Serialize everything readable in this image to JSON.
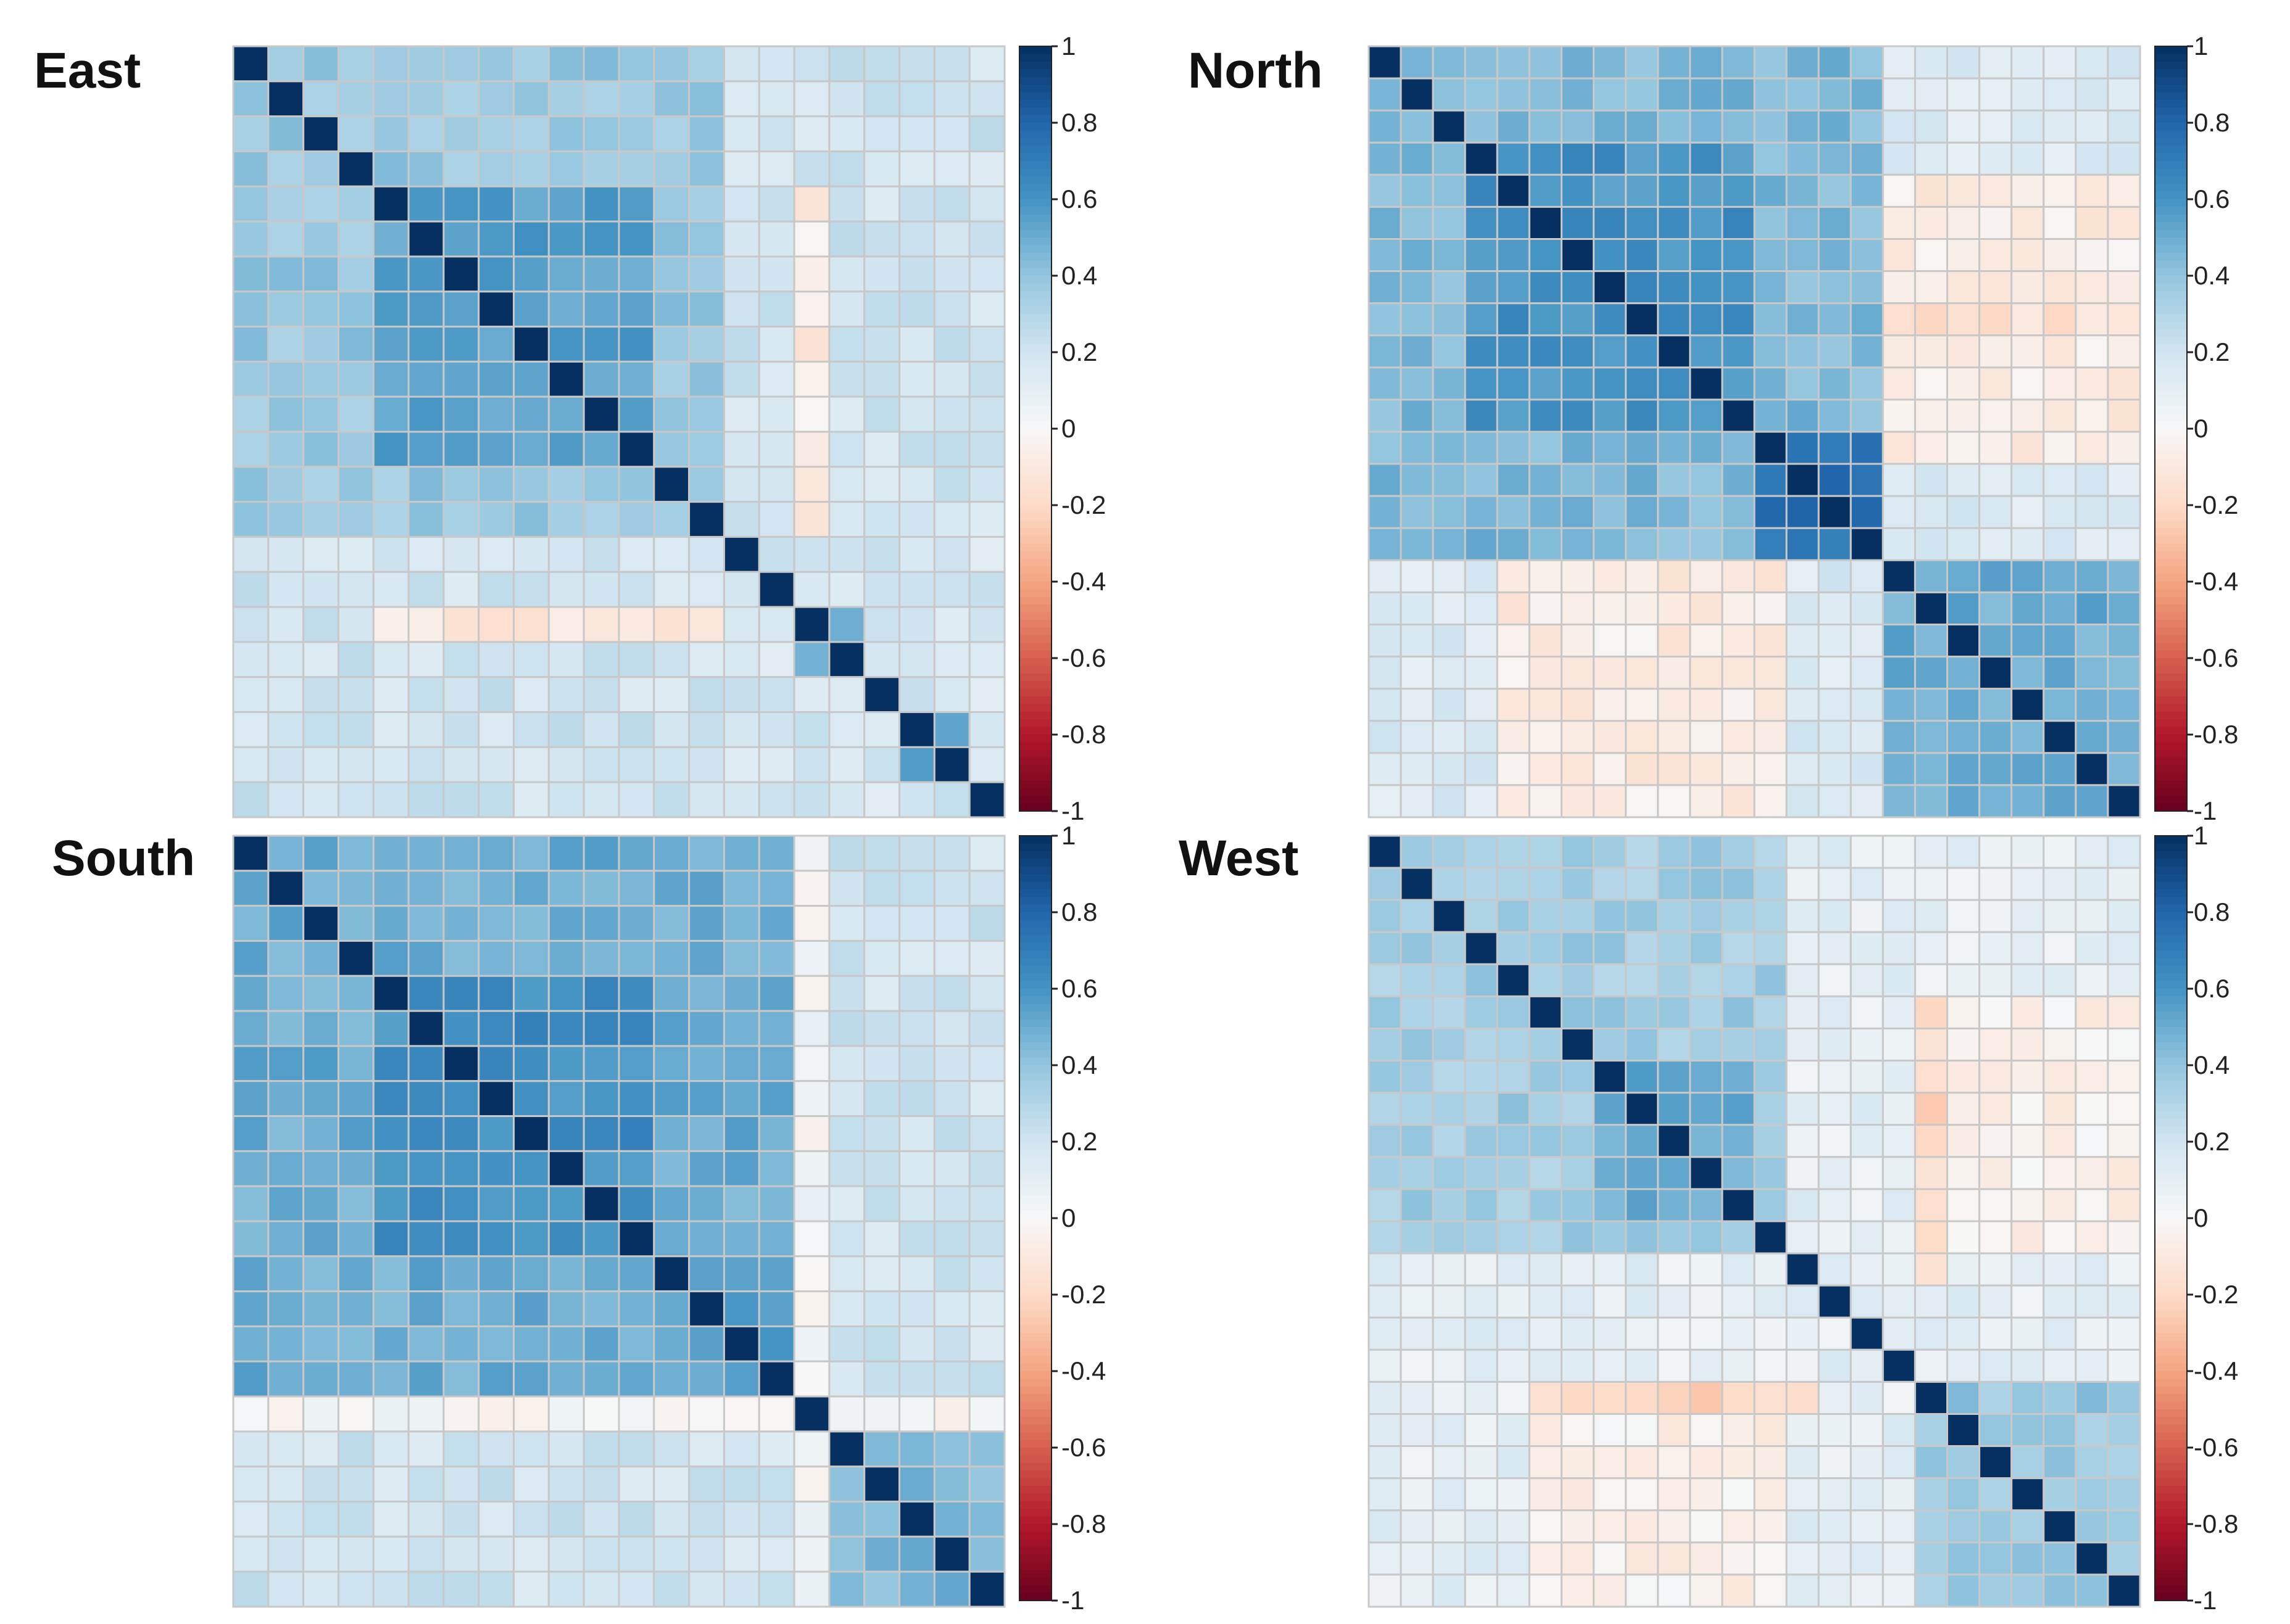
{
  "chart_data": [
    {
      "type": "heatmap",
      "title": "East",
      "n_vars": 22,
      "colorbar": {
        "ticks": [
          "1",
          "0.8",
          "0.6",
          "0.4",
          "0.2",
          "0",
          "-0.2",
          "-0.4",
          "-0.6",
          "-0.8",
          "-1"
        ],
        "range": [
          -1,
          1
        ]
      },
      "matrix_description": "Correlation matrix; strong positive block among variables 5-12 (~0.5-0.6), weak correlations (~0.1-0.2) elsewhere; variable 17 negatively correlated (~-0.1 to -0.3) with variables 5-12; diagonal = 1",
      "base": 0.2,
      "blocks": [
        {
          "rows": [
            0,
            13
          ],
          "cols": [
            0,
            13
          ],
          "value": 0.38
        },
        {
          "rows": [
            4,
            11
          ],
          "cols": [
            4,
            11
          ],
          "value": 0.55
        },
        {
          "rows": [
            14,
            21
          ],
          "cols": [
            14,
            21
          ],
          "value": 0.18
        },
        {
          "rows": [
            16,
            16
          ],
          "cols": [
            4,
            13
          ],
          "value": -0.12
        },
        {
          "rows": [
            4,
            13
          ],
          "cols": [
            16,
            16
          ],
          "value": -0.08
        },
        {
          "rows": [
            19,
            20
          ],
          "cols": [
            19,
            20
          ],
          "value": 0.5
        },
        {
          "rows": [
            16,
            17
          ],
          "cols": [
            16,
            17
          ],
          "value": 0.45
        }
      ]
    },
    {
      "type": "heatmap",
      "title": "North",
      "n_vars": 24,
      "colorbar": {
        "ticks": [
          "1",
          "0.8",
          "0.6",
          "0.4",
          "0.2",
          "0",
          "-0.2",
          "-0.4",
          "-0.6",
          "-0.8",
          "-1"
        ],
        "range": [
          -1,
          1
        ]
      },
      "matrix_description": "Correlation matrix with two strong positive blocks (variables 3-12 and 13-16, up to ~0.8) and a third block (17-23 ~0.5); mild negative correlations between first and last groups",
      "base": 0.15,
      "blocks": [
        {
          "rows": [
            0,
            15
          ],
          "cols": [
            0,
            15
          ],
          "value": 0.45
        },
        {
          "rows": [
            3,
            11
          ],
          "cols": [
            3,
            11
          ],
          "value": 0.6
        },
        {
          "rows": [
            12,
            15
          ],
          "cols": [
            12,
            15
          ],
          "value": 0.75
        },
        {
          "rows": [
            16,
            23
          ],
          "cols": [
            16,
            23
          ],
          "value": 0.5
        },
        {
          "rows": [
            16,
            23
          ],
          "cols": [
            4,
            12
          ],
          "value": -0.08
        },
        {
          "rows": [
            4,
            12
          ],
          "cols": [
            16,
            23
          ],
          "value": -0.08
        },
        {
          "rows": [
            8,
            8
          ],
          "cols": [
            16,
            23
          ],
          "value": -0.15
        }
      ]
    },
    {
      "type": "heatmap",
      "title": "South",
      "n_vars": 22,
      "colorbar": {
        "ticks": [
          "1",
          "0.8",
          "0.6",
          "0.4",
          "0.2",
          "0",
          "-0.2",
          "-0.4",
          "-0.6",
          "-0.8",
          "-1"
        ],
        "range": [
          -1,
          1
        ]
      },
      "matrix_description": "Correlation matrix with large strong positive block among variables 1-15 (~0.5-0.7); variable 16 near zero with all others; weaker block among 17-22 (~0.3-0.5)",
      "base": 0.2,
      "blocks": [
        {
          "rows": [
            0,
            15
          ],
          "cols": [
            0,
            15
          ],
          "value": 0.5
        },
        {
          "rows": [
            4,
            11
          ],
          "cols": [
            4,
            11
          ],
          "value": 0.62
        },
        {
          "rows": [
            12,
            15
          ],
          "cols": [
            12,
            15
          ],
          "value": 0.55
        },
        {
          "rows": [
            16,
            16
          ],
          "cols": [
            0,
            21
          ],
          "value": 0.0
        },
        {
          "rows": [
            0,
            21
          ],
          "cols": [
            16,
            16
          ],
          "value": 0.02
        },
        {
          "rows": [
            17,
            21
          ],
          "cols": [
            17,
            21
          ],
          "value": 0.45
        }
      ]
    },
    {
      "type": "heatmap",
      "title": "West",
      "n_vars": 24,
      "colorbar": {
        "ticks": [
          "1",
          "0.8",
          "0.6",
          "0.4",
          "0.2",
          "0",
          "-0.2",
          "-0.4",
          "-0.6",
          "-0.8",
          "-1"
        ],
        "range": [
          -1,
          1
        ]
      },
      "matrix_description": "Correlation matrix with moderate positive blocks (variables 1-12 ~0.3-0.5, 17-23 ~0.3-0.5), mixed weak positive/negative correlations between groups (~-0.3 to 0.2)",
      "base": 0.1,
      "blocks": [
        {
          "rows": [
            0,
            12
          ],
          "cols": [
            0,
            12
          ],
          "value": 0.35
        },
        {
          "rows": [
            7,
            11
          ],
          "cols": [
            7,
            11
          ],
          "value": 0.5
        },
        {
          "rows": [
            17,
            23
          ],
          "cols": [
            17,
            23
          ],
          "value": 0.38
        },
        {
          "rows": [
            17,
            23
          ],
          "cols": [
            5,
            12
          ],
          "value": -0.05
        },
        {
          "rows": [
            5,
            12
          ],
          "cols": [
            17,
            23
          ],
          "value": -0.05
        },
        {
          "rows": [
            17,
            17
          ],
          "cols": [
            5,
            13
          ],
          "value": -0.22
        },
        {
          "rows": [
            5,
            13
          ],
          "cols": [
            17,
            17
          ],
          "value": -0.2
        }
      ]
    }
  ]
}
